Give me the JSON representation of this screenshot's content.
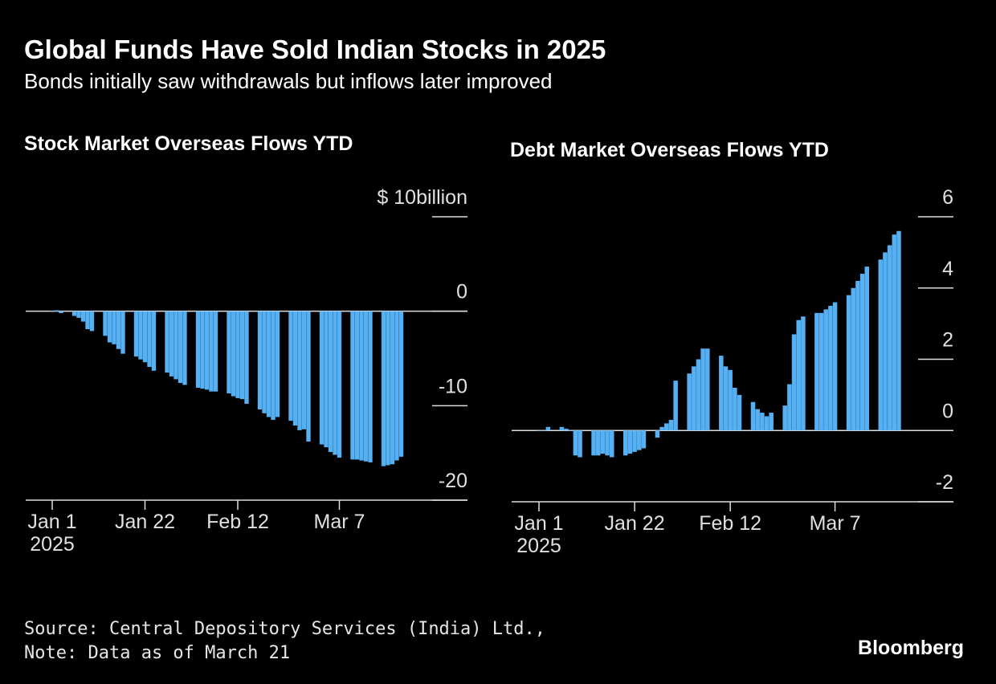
{
  "title": "Global Funds Have Sold Indian Stocks in 2025",
  "subtitle": "Bonds initially saw withdrawals but inflows later improved",
  "source": "Source: Central Depository Services (India) Ltd.,",
  "note": "Note: Data as of March 21",
  "brand": "Bloomberg",
  "chart_data": [
    {
      "type": "bar",
      "title": "Stock Market Overseas Flows YTD",
      "color": "#55b1f4",
      "x": [
        "2025-01-01",
        "2025-01-02",
        "2025-01-03",
        "2025-01-06",
        "2025-01-07",
        "2025-01-08",
        "2025-01-09",
        "2025-01-10",
        "2025-01-13",
        "2025-01-14",
        "2025-01-15",
        "2025-01-16",
        "2025-01-17",
        "2025-01-20",
        "2025-01-21",
        "2025-01-22",
        "2025-01-23",
        "2025-01-24",
        "2025-01-27",
        "2025-01-28",
        "2025-01-29",
        "2025-01-30",
        "2025-01-31",
        "2025-02-03",
        "2025-02-04",
        "2025-02-05",
        "2025-02-06",
        "2025-02-07",
        "2025-02-10",
        "2025-02-11",
        "2025-02-12",
        "2025-02-13",
        "2025-02-14",
        "2025-02-17",
        "2025-02-18",
        "2025-02-19",
        "2025-02-20",
        "2025-02-21",
        "2025-02-24",
        "2025-02-25",
        "2025-02-26",
        "2025-02-27",
        "2025-02-28",
        "2025-03-03",
        "2025-03-04",
        "2025-03-05",
        "2025-03-06",
        "2025-03-07",
        "2025-03-10",
        "2025-03-11",
        "2025-03-12",
        "2025-03-13",
        "2025-03-14",
        "2025-03-17",
        "2025-03-18",
        "2025-03-19",
        "2025-03-20",
        "2025-03-21"
      ],
      "values": [
        0,
        0.1,
        -0.2,
        -0.5,
        -0.7,
        -1.1,
        -1.9,
        -2.1,
        -2.6,
        -3.3,
        -3.5,
        -4.0,
        -4.5,
        -4.8,
        -5.1,
        -5.4,
        -5.9,
        -6.3,
        -6.5,
        -6.9,
        -7.2,
        -7.6,
        -7.8,
        -8.1,
        -8.2,
        -8.3,
        -8.5,
        -8.5,
        -8.7,
        -9.0,
        -9.2,
        -9.3,
        -9.8,
        -10.4,
        -10.8,
        -11.2,
        -11.5,
        -11.2,
        -11.6,
        -12.1,
        -12.6,
        -12.5,
        -13.8,
        -14.1,
        -14.4,
        -14.9,
        -15.2,
        -15.5,
        -15.7,
        -15.7,
        -15.8,
        -15.9,
        -16.0,
        -16.4,
        -16.3,
        -16.2,
        -15.8,
        -15.4
      ],
      "xlim": [
        "2024-12-26",
        "2025-04-05"
      ],
      "xticks": [
        {
          "value": "2025-01-01",
          "label": "Jan 1",
          "sublabel": "2025"
        },
        {
          "value": "2025-01-22",
          "label": "Jan 22"
        },
        {
          "value": "2025-02-12",
          "label": "Feb 12"
        },
        {
          "value": "2025-03-07",
          "label": "Mar 7"
        }
      ],
      "ylim": [
        -20,
        10
      ],
      "yticks": [
        {
          "value": 10,
          "label": "$ 10billion"
        },
        0,
        -10,
        -20
      ]
    },
    {
      "type": "bar",
      "title": "Debt Market Overseas Flows YTD",
      "color": "#55b1f4",
      "x": [
        "2025-01-01",
        "2025-01-02",
        "2025-01-03",
        "2025-01-06",
        "2025-01-07",
        "2025-01-08",
        "2025-01-09",
        "2025-01-10",
        "2025-01-13",
        "2025-01-14",
        "2025-01-15",
        "2025-01-16",
        "2025-01-17",
        "2025-01-20",
        "2025-01-21",
        "2025-01-22",
        "2025-01-23",
        "2025-01-24",
        "2025-01-27",
        "2025-01-28",
        "2025-01-29",
        "2025-01-30",
        "2025-01-31",
        "2025-02-03",
        "2025-02-04",
        "2025-02-05",
        "2025-02-06",
        "2025-02-07",
        "2025-02-10",
        "2025-02-11",
        "2025-02-12",
        "2025-02-13",
        "2025-02-14",
        "2025-02-17",
        "2025-02-18",
        "2025-02-19",
        "2025-02-20",
        "2025-02-21",
        "2025-02-24",
        "2025-02-25",
        "2025-02-26",
        "2025-02-27",
        "2025-02-28",
        "2025-03-03",
        "2025-03-04",
        "2025-03-05",
        "2025-03-06",
        "2025-03-07",
        "2025-03-10",
        "2025-03-11",
        "2025-03-12",
        "2025-03-13",
        "2025-03-14",
        "2025-03-17",
        "2025-03-18",
        "2025-03-19",
        "2025-03-20",
        "2025-03-21"
      ],
      "values": [
        0,
        0,
        0.1,
        0.1,
        0.05,
        0,
        -0.7,
        -0.75,
        -0.7,
        -0.7,
        -0.65,
        -0.7,
        -0.75,
        -0.7,
        -0.65,
        -0.6,
        -0.55,
        -0.5,
        -0.2,
        0.1,
        0.2,
        0.3,
        1.4,
        1.6,
        1.8,
        2.0,
        2.3,
        2.3,
        2.1,
        1.8,
        1.7,
        1.2,
        1.0,
        0.8,
        0.6,
        0.5,
        0.4,
        0.5,
        0.7,
        1.3,
        2.7,
        3.1,
        3.2,
        3.3,
        3.3,
        3.4,
        3.5,
        3.6,
        3.8,
        4.0,
        4.2,
        4.4,
        4.6,
        4.8,
        5.0,
        5.2,
        5.5,
        5.6
      ],
      "xlim": [
        "2024-12-26",
        "2025-04-02"
      ],
      "xticks": [
        {
          "value": "2025-01-01",
          "label": "Jan 1",
          "sublabel": "2025"
        },
        {
          "value": "2025-01-22",
          "label": "Jan 22"
        },
        {
          "value": "2025-02-12",
          "label": "Feb 12"
        },
        {
          "value": "2025-03-07",
          "label": "Mar 7"
        }
      ],
      "ylim": [
        -2,
        6
      ],
      "yticks": [
        6,
        4,
        2,
        0,
        -2
      ]
    }
  ]
}
